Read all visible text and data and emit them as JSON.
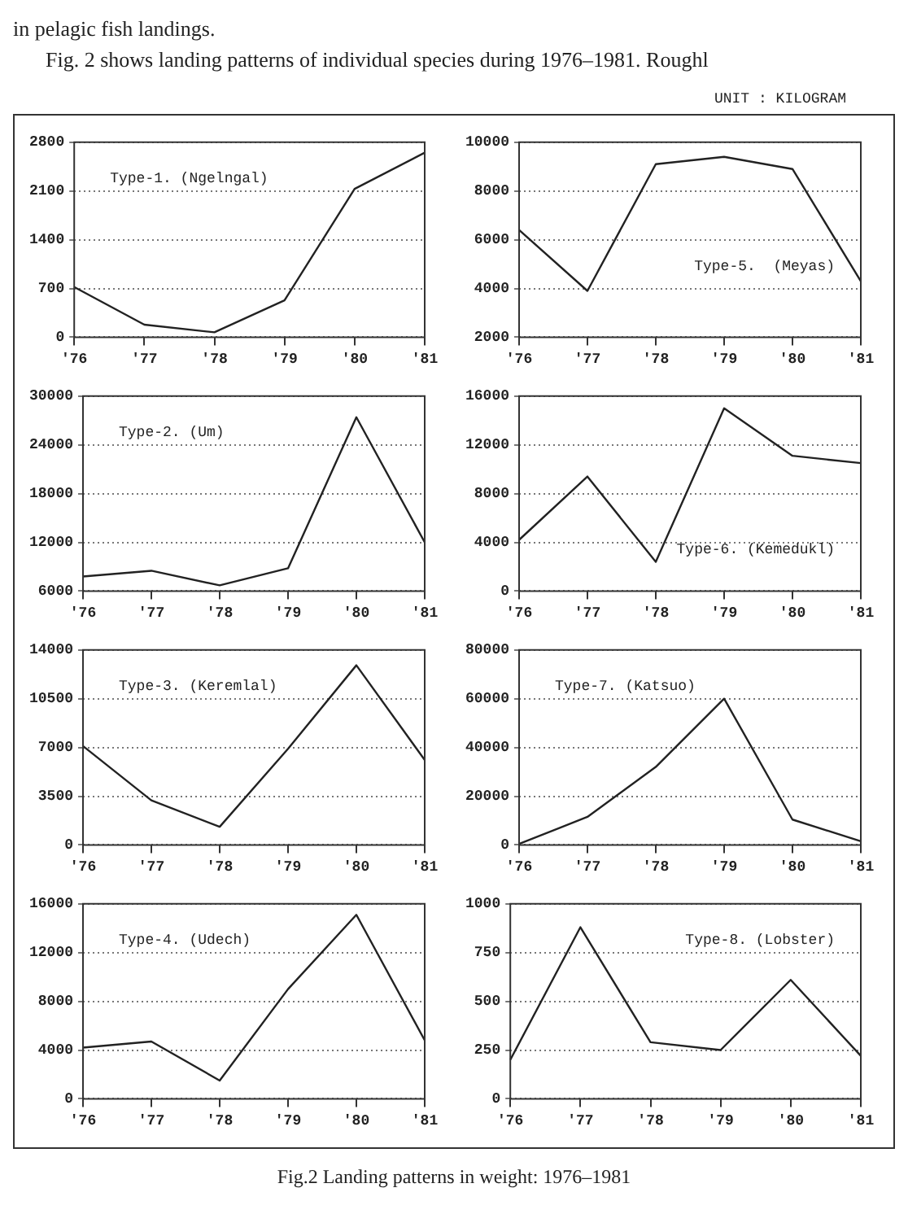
{
  "chart_data": [
    {
      "type": "line",
      "title": "Type-1. (Ngelngal)",
      "categories": [
        "'76",
        "'77",
        "'78",
        "'79",
        "'80",
        "'81"
      ],
      "values": [
        720,
        180,
        70,
        530,
        2130,
        2650
      ],
      "color": "#222222",
      "ylim": [
        0,
        2800
      ],
      "yticks": [
        0,
        700,
        1400,
        2100,
        2800
      ],
      "grid": "y",
      "annotations": [
        "in pelagic fish landings.",
        "Fig. 2 shows landing patterns of individual species during 1976–1981.  Roughl",
        "UNIT : KILOGRAM"
      ]
    },
    {
      "type": "line",
      "title": "Type-5.  (Meyas)",
      "categories": [
        "'76",
        "'77",
        "'78",
        "'79",
        "'80",
        "'81"
      ],
      "values": [
        6400,
        3900,
        9100,
        9400,
        8900,
        4300
      ],
      "color": "#222222",
      "ylim": [
        2000,
        10000
      ],
      "yticks": [
        2000,
        4000,
        6000,
        8000,
        10000
      ],
      "grid": "y"
    },
    {
      "type": "line",
      "title": "Type-2. (Um)",
      "categories": [
        "'76",
        "'77",
        "'78",
        "'79",
        "'80",
        "'81"
      ],
      "values": [
        7800,
        8500,
        6700,
        8800,
        27400,
        12000
      ],
      "color": "#222222",
      "ylim": [
        6000,
        30000
      ],
      "yticks": [
        6000,
        12000,
        18000,
        24000,
        30000
      ],
      "grid": "y"
    },
    {
      "type": "line",
      "title": "Type-6. (Kemedukl)",
      "categories": [
        "'76",
        "'77",
        "'78",
        "'79",
        "'80",
        "'81"
      ],
      "values": [
        4200,
        9400,
        2400,
        15000,
        11100,
        10500
      ],
      "color": "#222222",
      "ylim": [
        0,
        16000
      ],
      "yticks": [
        0,
        4000,
        8000,
        12000,
        16000
      ],
      "grid": "y"
    },
    {
      "type": "line",
      "title": "Type-3. (Keremlal)",
      "categories": [
        "'76",
        "'77",
        "'78",
        "'79",
        "'80",
        "'81"
      ],
      "values": [
        7100,
        3200,
        1300,
        6900,
        12900,
        6100
      ],
      "color": "#222222",
      "ylim": [
        0,
        14000
      ],
      "yticks": [
        0,
        3500,
        7000,
        10500,
        14000
      ],
      "grid": "y"
    },
    {
      "type": "line",
      "title": "Type-7. (Katsuo)",
      "categories": [
        "'76",
        "'77",
        "'78",
        "'79",
        "'80",
        "'81"
      ],
      "values": [
        400,
        11500,
        32000,
        60000,
        10400,
        1500
      ],
      "color": "#222222",
      "ylim": [
        0,
        80000
      ],
      "yticks": [
        0,
        20000,
        40000,
        60000,
        80000
      ],
      "grid": "y"
    },
    {
      "type": "line",
      "title": "Type-4. (Udech)",
      "categories": [
        "'76",
        "'77",
        "'78",
        "'79",
        "'80",
        "'81"
      ],
      "values": [
        4200,
        4700,
        1500,
        9000,
        15100,
        4800
      ],
      "color": "#222222",
      "ylim": [
        0,
        16000
      ],
      "yticks": [
        0,
        4000,
        8000,
        12000,
        16000
      ],
      "grid": "y"
    },
    {
      "type": "line",
      "title": "Type-8. (Lobster)",
      "categories": [
        "'76",
        "'77",
        "'78",
        "'79",
        "'80",
        "'81"
      ],
      "values": [
        200,
        880,
        290,
        250,
        610,
        220
      ],
      "color": "#222222",
      "ylim": [
        0,
        1000
      ],
      "yticks": [
        0,
        250,
        500,
        750,
        1000
      ],
      "grid": "y",
      "annotations": [
        "Fig.2  Landing patterns in weight: 1976–1981"
      ]
    }
  ]
}
